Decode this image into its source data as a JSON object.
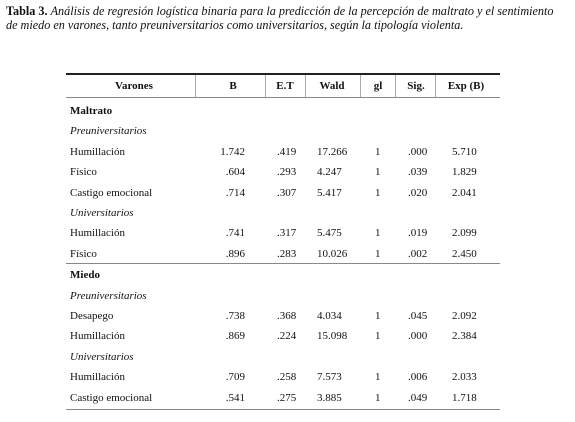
{
  "caption": {
    "label": "Tabla 3.",
    "text": "Análisis de regresión logística binaria para la predicción de la percepción de maltrato y el sentimiento de miedo en varones, tanto preuniversitarios como universitarios, según la tipología violenta."
  },
  "table": {
    "columns": [
      "Varones",
      "B",
      "E.T",
      "Wald",
      "gl",
      "Sig.",
      "Exp (B)"
    ],
    "sections": [
      {
        "title": "Maltrato",
        "groups": [
          {
            "title": "Preuniversitarios",
            "rows": [
              [
                "Humillación",
                "1.742",
                ".419",
                "17.266",
                "1",
                ".000",
                "5.710"
              ],
              [
                "Físico",
                ".604",
                ".293",
                "4.247",
                "1",
                ".039",
                "1.829"
              ],
              [
                "Castigo emocional",
                ".714",
                ".307",
                "5.417",
                "1",
                ".020",
                "2.041"
              ]
            ]
          },
          {
            "title": "Universitarios",
            "rows": [
              [
                "Humillación",
                ".741",
                ".317",
                "5.475",
                "1",
                ".019",
                "2.099"
              ],
              [
                "Físico",
                ".896",
                ".283",
                "10.026",
                "1",
                ".002",
                "2.450"
              ]
            ]
          }
        ]
      },
      {
        "title": "Miedo",
        "groups": [
          {
            "title": "Preuniversitarios",
            "rows": [
              [
                "Desapego",
                ".738",
                ".368",
                "4.034",
                "1",
                ".045",
                "2.092"
              ],
              [
                "Humillación",
                ".869",
                ".224",
                "15.098",
                "1",
                ".000",
                "2.384"
              ]
            ]
          },
          {
            "title": "Universitarios",
            "rows": [
              [
                "Humillación",
                ".709",
                ".258",
                "7.573",
                "1",
                ".006",
                "2.033"
              ],
              [
                "Castigo emocional",
                ".541",
                ".275",
                "3.885",
                "1",
                ".049",
                "1.718"
              ]
            ]
          }
        ]
      }
    ]
  }
}
